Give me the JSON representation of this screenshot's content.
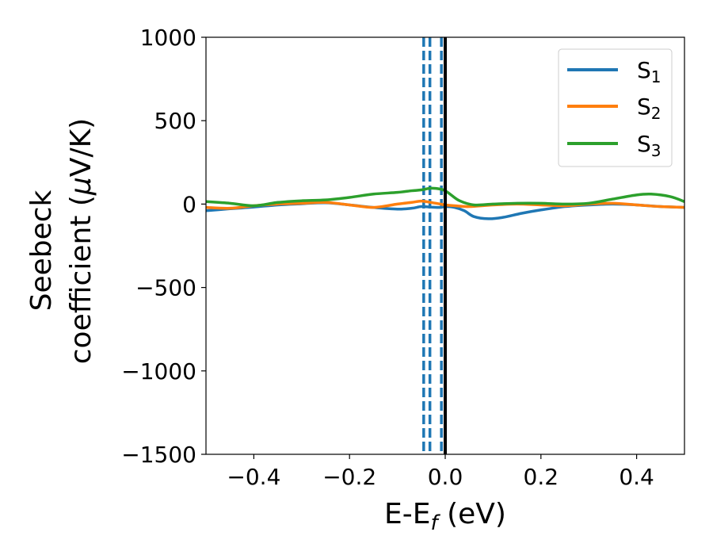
{
  "chart_data": {
    "type": "line",
    "xlabel": "E-E",
    "xlabel_sub": "f",
    "xlabel_unit": " (eV)",
    "ylabel_line1": "Seebeck",
    "ylabel_line2_pre": "coefficient  (",
    "ylabel_mu": "μ",
    "ylabel_line2_post": "V/K)",
    "xlim": [
      -0.5,
      0.5
    ],
    "ylim": [
      -1500,
      1000
    ],
    "xticks": [
      -0.4,
      -0.2,
      0.0,
      0.2,
      0.4
    ],
    "xtick_labels": [
      "−0.4",
      "−0.2",
      "0.0",
      "0.2",
      "0.4"
    ],
    "yticks": [
      -1500,
      -1000,
      -500,
      0,
      500,
      1000
    ],
    "ytick_labels": [
      "−1500",
      "−1000",
      "−500",
      "0",
      "500",
      "1000"
    ],
    "grid": false,
    "legend_position": "top-right",
    "vlines_dashed": [
      -0.045,
      -0.032,
      -0.008
    ],
    "vline_solid": 0.0,
    "colors": {
      "S1": "#1f77b4",
      "S2": "#ff7f0e",
      "S3": "#2ca02c",
      "fermi": "#000000"
    },
    "series": [
      {
        "name": "S",
        "sub": "1",
        "color": "#1f77b4",
        "x": [
          -0.5,
          -0.45,
          -0.4,
          -0.35,
          -0.3,
          -0.25,
          -0.2,
          -0.15,
          -0.1,
          -0.07,
          -0.05,
          -0.03,
          -0.01,
          0.0,
          0.02,
          0.04,
          0.06,
          0.09,
          0.12,
          0.16,
          0.2,
          0.25,
          0.3,
          0.35,
          0.4,
          0.45,
          0.5
        ],
        "values": [
          -40,
          -28,
          -18,
          -5,
          2,
          8,
          -5,
          -20,
          -30,
          -25,
          -15,
          -18,
          -20,
          -15,
          -20,
          -40,
          -75,
          -88,
          -80,
          -55,
          -35,
          -15,
          -5,
          0,
          -5,
          -15,
          -20
        ]
      },
      {
        "name": "S",
        "sub": "2",
        "color": "#ff7f0e",
        "x": [
          -0.5,
          -0.45,
          -0.4,
          -0.35,
          -0.3,
          -0.25,
          -0.2,
          -0.15,
          -0.1,
          -0.07,
          -0.05,
          -0.03,
          -0.01,
          0.0,
          0.02,
          0.05,
          0.1,
          0.15,
          0.2,
          0.25,
          0.3,
          0.35,
          0.4,
          0.45,
          0.5
        ],
        "values": [
          -20,
          -25,
          -10,
          0,
          5,
          10,
          -5,
          -20,
          0,
          10,
          18,
          10,
          0,
          -5,
          -10,
          -15,
          -5,
          0,
          -5,
          -10,
          0,
          5,
          -5,
          -15,
          -20
        ]
      },
      {
        "name": "S",
        "sub": "3",
        "color": "#2ca02c",
        "x": [
          -0.5,
          -0.45,
          -0.4,
          -0.35,
          -0.3,
          -0.25,
          -0.2,
          -0.15,
          -0.1,
          -0.07,
          -0.05,
          -0.03,
          -0.01,
          0.0,
          0.01,
          0.03,
          0.06,
          0.1,
          0.15,
          0.2,
          0.25,
          0.3,
          0.35,
          0.4,
          0.43,
          0.47,
          0.5
        ],
        "values": [
          15,
          5,
          -10,
          10,
          20,
          25,
          40,
          60,
          70,
          80,
          85,
          95,
          90,
          80,
          60,
          20,
          -5,
          0,
          5,
          5,
          0,
          5,
          30,
          55,
          60,
          45,
          15
        ]
      }
    ]
  }
}
